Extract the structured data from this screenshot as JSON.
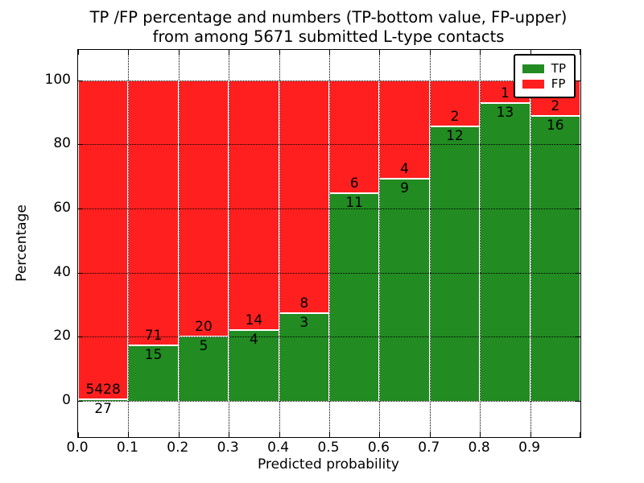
{
  "title": {
    "line1": "TP /FP percentage and numbers (TP-bottom value, FP-upper)",
    "line2": "from among 5671 submitted L-type contacts"
  },
  "chart_data": {
    "type": "bar",
    "stacked": true,
    "normalized": "each bin scaled to 100%",
    "title": "TP /FP percentage and numbers (TP-bottom value, FP-upper)\nfrom among 5671 submitted L-type contacts",
    "xlabel": "Predicted probability",
    "ylabel": "Percentage",
    "total_contacts": 5671,
    "bin_starts": [
      0.0,
      0.1,
      0.2,
      0.3,
      0.4,
      0.5,
      0.6,
      0.7,
      0.8,
      0.9
    ],
    "bin_width": 0.1,
    "series": [
      {
        "name": "TP",
        "color": "#228b22",
        "counts": [
          27,
          15,
          5,
          4,
          3,
          11,
          9,
          12,
          13,
          16
        ]
      },
      {
        "name": "FP",
        "color": "#ff1f1f",
        "counts": [
          5428,
          71,
          20,
          14,
          8,
          6,
          4,
          2,
          1,
          2
        ]
      }
    ],
    "tp_percent_of_bin": [
      0.5,
      17.4,
      20.0,
      22.2,
      27.3,
      64.7,
      69.2,
      85.7,
      92.9,
      88.9
    ],
    "x_tick_labels": [
      "0.0",
      "0.1",
      "0.2",
      "0.3",
      "0.4",
      "0.5",
      "0.6",
      "0.7",
      "0.8",
      "0.9"
    ],
    "y_ticks": [
      0,
      20,
      40,
      60,
      80,
      100
    ],
    "y_tick_labels": [
      "0",
      "20",
      "40",
      "60",
      "80",
      "100"
    ],
    "xlim": [
      0,
      1
    ],
    "ylim": [
      -11.3,
      109.5
    ],
    "grid": "dotted",
    "legend": {
      "position": "upper-right",
      "entries": [
        {
          "label": "TP",
          "color": "#228b22"
        },
        {
          "label": "FP",
          "color": "#ff1f1f"
        }
      ]
    }
  }
}
